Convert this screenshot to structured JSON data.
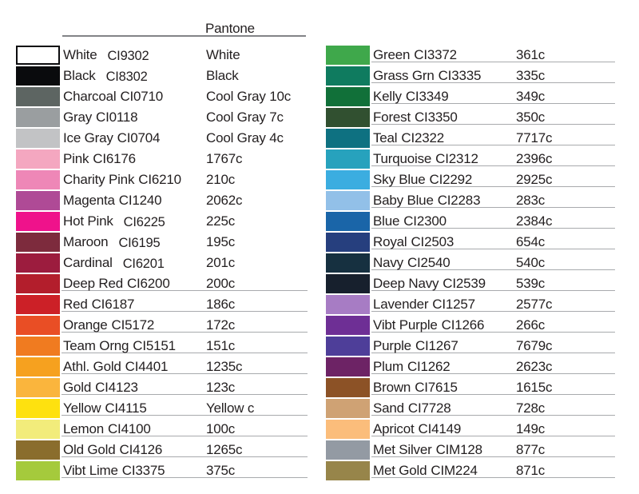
{
  "header": {
    "pantone_label": "Pantone"
  },
  "chart_data": {
    "type": "table",
    "title": "Pantone",
    "fields": [
      "color_name",
      "code",
      "pantone_match"
    ],
    "columns": [
      {
        "rows": [
          {
            "name": "White",
            "code": "CI9302",
            "pantone": "White",
            "color": "#ffffff",
            "border": true,
            "underline": false,
            "shifted": true
          },
          {
            "name": "Black",
            "code": "CI8302",
            "pantone": "Black",
            "color": "#0a0b0d",
            "border": false,
            "underline": false,
            "shifted": true
          },
          {
            "name": "Charcoal",
            "code": "CI0710",
            "pantone": "Cool Gray 10c",
            "color": "#5d6562",
            "border": false,
            "underline": false,
            "shifted": false
          },
          {
            "name": "Gray",
            "code": "CI0118",
            "pantone": "Cool Gray 7c",
            "color": "#9a9ea0",
            "border": false,
            "underline": false,
            "shifted": false
          },
          {
            "name": "Ice Gray",
            "code": "CI0704",
            "pantone": "Cool Gray 4c",
            "color": "#c2c3c5",
            "border": false,
            "underline": false,
            "shifted": false
          },
          {
            "name": "Pink",
            "code": "CI6176",
            "pantone": "1767c",
            "color": "#f4a7c0",
            "border": false,
            "underline": false,
            "shifted": false
          },
          {
            "name": "Charity Pink",
            "code": "CI6210",
            "pantone": "210c",
            "color": "#ee87b7",
            "border": false,
            "underline": false,
            "shifted": false
          },
          {
            "name": "Magenta",
            "code": "CI1240",
            "pantone": "2062c",
            "color": "#af4a96",
            "border": false,
            "underline": false,
            "shifted": false
          },
          {
            "name": "Hot Pink",
            "code": "CI6225",
            "pantone": "225c",
            "color": "#ef128b",
            "border": false,
            "underline": false,
            "shifted": true
          },
          {
            "name": "Maroon",
            "code": "CI6195",
            "pantone": "195c",
            "color": "#7d2b3d",
            "border": false,
            "underline": false,
            "shifted": true
          },
          {
            "name": "Cardinal",
            "code": "CI6201",
            "pantone": "201c",
            "color": "#9c1c3e",
            "border": false,
            "underline": false,
            "shifted": true
          },
          {
            "name": "Deep Red",
            "code": "CI6200",
            "pantone": "200c",
            "color": "#b31e2c",
            "border": false,
            "underline": true,
            "shifted": false
          },
          {
            "name": "Red",
            "code": "CI6187",
            "pantone": "186c",
            "color": "#cc2027",
            "border": false,
            "underline": true,
            "shifted": false
          },
          {
            "name": "Orange",
            "code": "CI5172",
            "pantone": "172c",
            "color": "#e94e25",
            "border": false,
            "underline": true,
            "shifted": false
          },
          {
            "name": "Team Orng",
            "code": "CI5151",
            "pantone": "151c",
            "color": "#f07b20",
            "border": false,
            "underline": true,
            "shifted": false
          },
          {
            "name": "Athl. Gold",
            "code": "CI4401",
            "pantone": "1235c",
            "color": "#f6a11f",
            "border": false,
            "underline": true,
            "shifted": false
          },
          {
            "name": "Gold",
            "code": "CI4123",
            "pantone": "123c",
            "color": "#fab53d",
            "border": false,
            "underline": true,
            "shifted": false
          },
          {
            "name": "Yellow",
            "code": "CI4115",
            "pantone": "Yellow c",
            "color": "#fee10f",
            "border": false,
            "underline": true,
            "shifted": false
          },
          {
            "name": "Lemon",
            "code": "CI4100",
            "pantone": "100c",
            "color": "#f2ec7b",
            "border": false,
            "underline": true,
            "shifted": false
          },
          {
            "name": "Old Gold",
            "code": "CI4126",
            "pantone": "1265c",
            "color": "#8a6d2d",
            "border": false,
            "underline": true,
            "shifted": false
          },
          {
            "name": "Vibt Lime",
            "code": "CI3375",
            "pantone": "375c",
            "color": "#a5ca3c",
            "border": false,
            "underline": true,
            "shifted": false
          }
        ]
      },
      {
        "rows": [
          {
            "name": "Green",
            "code": "CI3372",
            "pantone": "361c",
            "color": "#3fa84b",
            "border": false,
            "underline": true,
            "shifted": false
          },
          {
            "name": "Grass Grn",
            "code": "CI3335",
            "pantone": "335c",
            "color": "#0f7b5f",
            "border": false,
            "underline": true,
            "shifted": false
          },
          {
            "name": "Kelly",
            "code": "CI3349",
            "pantone": "349c",
            "color": "#117039",
            "border": false,
            "underline": true,
            "shifted": false
          },
          {
            "name": "Forest",
            "code": "CI3350",
            "pantone": "350c",
            "color": "#315030",
            "border": false,
            "underline": true,
            "shifted": false
          },
          {
            "name": "Teal",
            "code": "CI2322",
            "pantone": "7717c",
            "color": "#0e7181",
            "border": false,
            "underline": true,
            "shifted": false
          },
          {
            "name": "Turquoise",
            "code": "CI2312",
            "pantone": "2396c",
            "color": "#27a2bd",
            "border": false,
            "underline": true,
            "shifted": false
          },
          {
            "name": "Sky Blue",
            "code": "CI2292",
            "pantone": "2925c",
            "color": "#3bade0",
            "border": false,
            "underline": true,
            "shifted": false
          },
          {
            "name": "Baby Blue",
            "code": "CI2283",
            "pantone": "283c",
            "color": "#92c0e8",
            "border": false,
            "underline": true,
            "shifted": false
          },
          {
            "name": "Blue",
            "code": "CI2300",
            "pantone": "2384c",
            "color": "#1a65a8",
            "border": false,
            "underline": true,
            "shifted": false
          },
          {
            "name": "Royal",
            "code": "CI2503",
            "pantone": "654c",
            "color": "#263f7e",
            "border": false,
            "underline": true,
            "shifted": false
          },
          {
            "name": "Navy",
            "code": "CI2540",
            "pantone": "540c",
            "color": "#163040",
            "border": false,
            "underline": true,
            "shifted": false
          },
          {
            "name": "Deep Navy",
            "code": "CI2539",
            "pantone": "539c",
            "color": "#17202d",
            "border": false,
            "underline": true,
            "shifted": false
          },
          {
            "name": "Lavender",
            "code": "CI1257",
            "pantone": "2577c",
            "color": "#a77cc4",
            "border": false,
            "underline": true,
            "shifted": false
          },
          {
            "name": "Vibt Purple",
            "code": "CI1266",
            "pantone": "266c",
            "color": "#6e2f95",
            "border": false,
            "underline": true,
            "shifted": false
          },
          {
            "name": "Purple",
            "code": "CI1267",
            "pantone": "7679c",
            "color": "#4e3e99",
            "border": false,
            "underline": true,
            "shifted": false
          },
          {
            "name": "Plum",
            "code": "CI1262",
            "pantone": "2623c",
            "color": "#6d2365",
            "border": false,
            "underline": true,
            "shifted": false
          },
          {
            "name": "Brown",
            "code": "CI7615",
            "pantone": "1615c",
            "color": "#8c5226",
            "border": false,
            "underline": true,
            "shifted": false
          },
          {
            "name": "Sand",
            "code": "CI7728",
            "pantone": "728c",
            "color": "#cfa274",
            "border": false,
            "underline": true,
            "shifted": false
          },
          {
            "name": "Apricot",
            "code": "CI4149",
            "pantone": "149c",
            "color": "#fbbd7b",
            "border": false,
            "underline": true,
            "shifted": false
          },
          {
            "name": "Met Silver",
            "code": "CIM128",
            "pantone": "877c",
            "color": "#939aa3",
            "border": false,
            "underline": true,
            "shifted": false
          },
          {
            "name": "Met Gold",
            "code": "CIM224",
            "pantone": "871c",
            "color": "#97854a",
            "border": false,
            "underline": true,
            "shifted": false
          }
        ]
      }
    ]
  }
}
